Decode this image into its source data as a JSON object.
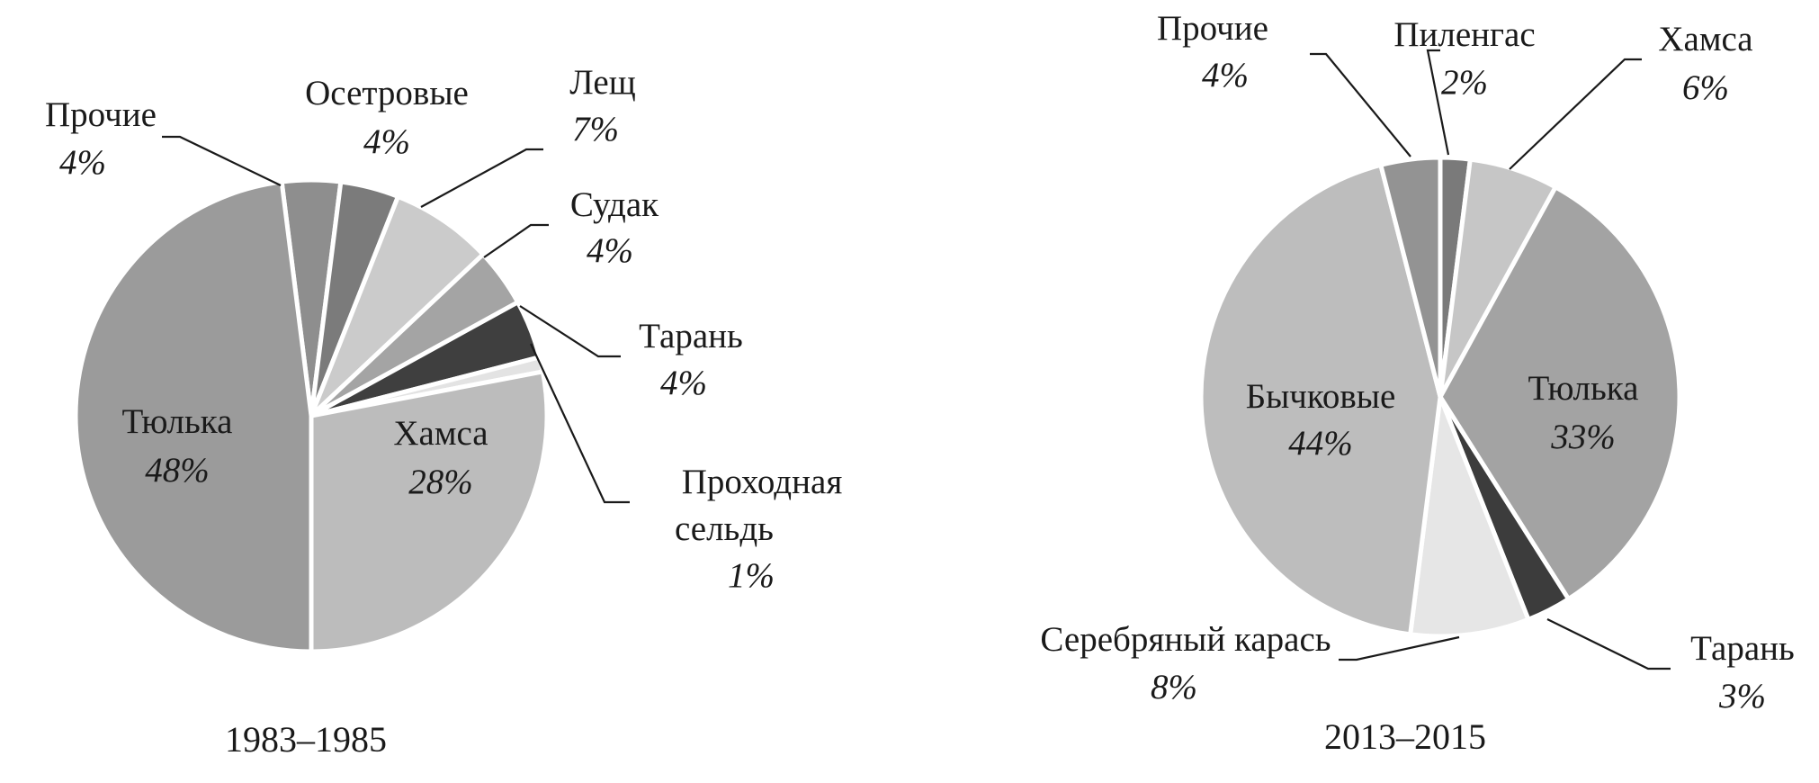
{
  "chart_data": [
    {
      "type": "pie",
      "caption": "1983–1985",
      "slices": [
        {
          "label": "Прочие",
          "value": 4,
          "value_label": "4%",
          "color": "#8e8e8e"
        },
        {
          "label": "Осетровые",
          "value": 4,
          "value_label": "4%",
          "color": "#7b7b7b"
        },
        {
          "label": "Лещ",
          "value": 7,
          "value_label": "7%",
          "color": "#cbcbcb"
        },
        {
          "label": "Судак",
          "value": 4,
          "value_label": "4%",
          "color": "#a4a4a4"
        },
        {
          "label": "Тарань",
          "value": 4,
          "value_label": "4%",
          "color": "#3f3f3f"
        },
        {
          "label": "Проходная сельдь",
          "label_lines": [
            "Проходная",
            "сельдь"
          ],
          "value": 1,
          "value_label": "1%",
          "color": "#e3e3e3"
        },
        {
          "label": "Хамса",
          "value": 28,
          "value_label": "28%",
          "color": "#bcbcbc"
        },
        {
          "label": "Тюлька",
          "value": 48,
          "value_label": "48%",
          "color": "#9b9b9b"
        }
      ]
    },
    {
      "type": "pie",
      "caption": "2013–2015",
      "slices": [
        {
          "label": "Пиленгас",
          "value": 2,
          "value_label": "2%",
          "color": "#7a7a7a"
        },
        {
          "label": "Хамса",
          "value": 6,
          "value_label": "6%",
          "color": "#c6c6c6"
        },
        {
          "label": "Тюлька",
          "value": 33,
          "value_label": "33%",
          "color": "#a3a3a3"
        },
        {
          "label": "Тарань",
          "value": 3,
          "value_label": "3%",
          "color": "#3c3c3c"
        },
        {
          "label": "Серебряный карась",
          "value": 8,
          "value_label": "8%",
          "color": "#e6e6e6"
        },
        {
          "label": "Бычковые",
          "value": 44,
          "value_label": "44%",
          "color": "#bdbdbd"
        },
        {
          "label": "Прочие",
          "value": 4,
          "value_label": "4%",
          "color": "#939393"
        }
      ]
    }
  ]
}
